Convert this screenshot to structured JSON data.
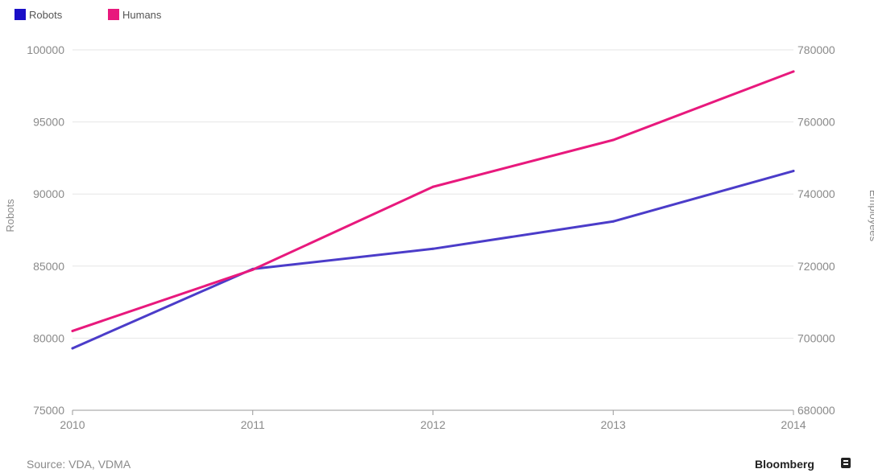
{
  "chart_data": {
    "type": "line",
    "x": [
      "2010",
      "2011",
      "2012",
      "2013",
      "2014"
    ],
    "series": [
      {
        "name": "Robots",
        "axis": "left",
        "color": "#4b3cc9",
        "values": [
          79300,
          84800,
          86200,
          88100,
          91600
        ]
      },
      {
        "name": "Humans",
        "axis": "right",
        "color": "#e8197d",
        "values": [
          702000,
          719000,
          742000,
          755000,
          774000
        ]
      }
    ],
    "ylabel_left": "Robots",
    "ylabel_right": "Employees",
    "ylim_left": [
      75000,
      100000
    ],
    "yticks_left": [
      "75000",
      "80000",
      "85000",
      "90000",
      "95000",
      "100000"
    ],
    "ylim_right": [
      680000,
      780000
    ],
    "yticks_right": [
      "680000",
      "700000",
      "720000",
      "740000",
      "760000",
      "780000"
    ],
    "grid": true,
    "legend_position": "top-left",
    "legend_colors": {
      "Robots": "#1a0fc7",
      "Humans": "#e8197d"
    }
  },
  "footer": {
    "source": "Source: VDA, VDMA",
    "brand": "Bloomberg",
    "brand_icon": "bloomberg-logo-icon"
  }
}
